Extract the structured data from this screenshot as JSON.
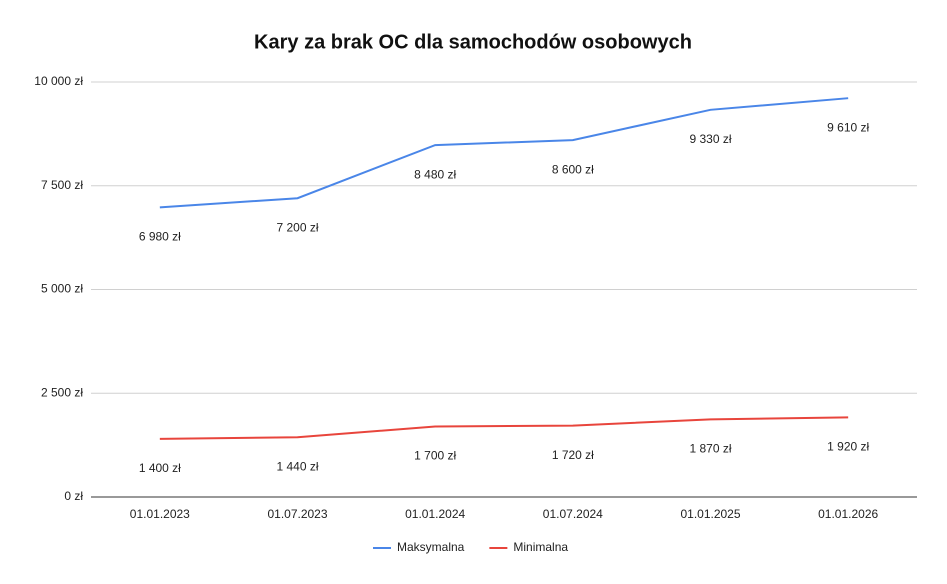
{
  "chart_data": {
    "type": "line",
    "title": "Kary za brak OC dla samochodów osobowych",
    "categories": [
      "01.01.2023",
      "01.07.2023",
      "01.01.2024",
      "01.07.2024",
      "01.01.2025",
      "01.01.2026"
    ],
    "series": [
      {
        "name": "Maksymalna",
        "color": "#4a86e8",
        "values": [
          6980,
          7200,
          8480,
          8600,
          9330,
          9610
        ],
        "value_labels": [
          "6 980 zł",
          "7 200 zł",
          "8 480 zł",
          "8 600 zł",
          "9 330 zł",
          "9 610 zł"
        ]
      },
      {
        "name": "Minimalna",
        "color": "#e8453c",
        "values": [
          1400,
          1440,
          1700,
          1720,
          1870,
          1920
        ],
        "value_labels": [
          "1 400 zł",
          "1 440 zł",
          "1 700 zł",
          "1 720 zł",
          "1 870 zł",
          "1 920 zł"
        ]
      }
    ],
    "ylim": [
      0,
      10000
    ],
    "yticks": [
      {
        "value": 0,
        "label": "0 zł"
      },
      {
        "value": 2500,
        "label": "2 500 zł"
      },
      {
        "value": 5000,
        "label": "5 000 zł"
      },
      {
        "value": 7500,
        "label": "7 500 zł"
      },
      {
        "value": 10000,
        "label": "10 000 zł"
      }
    ],
    "grid": true,
    "legend": "bottom"
  }
}
